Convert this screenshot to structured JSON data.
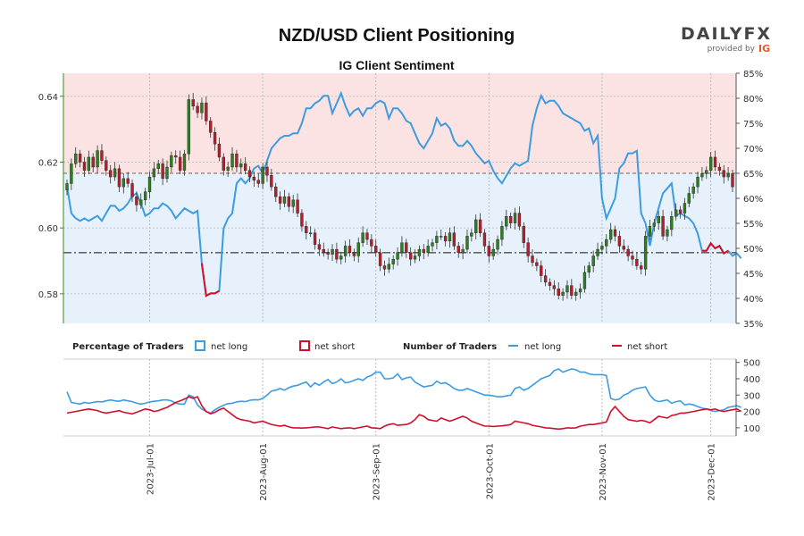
{
  "chart_data": {
    "title": "NZD/USD Client Positioning",
    "subtitle": "IG Client Sentiment",
    "brand": {
      "name": "DAILYFX",
      "tagline": "provided by",
      "partner": "IG"
    },
    "x_dates": [
      "2023-Jul-01",
      "2023-Aug-01",
      "2023-Sep-01",
      "2023-Oct-01",
      "2023-Nov-01",
      "2023-Dec-01"
    ],
    "price": {
      "type": "candlestick",
      "ylim": [
        0.571,
        0.647
      ],
      "ticks": [
        0.58,
        0.6,
        0.62,
        0.64
      ],
      "tick_labels": [
        "0.58",
        "0.60",
        "0.62",
        "0.64"
      ],
      "reference_line": 0.5925,
      "closes": [
        0.6135,
        0.6195,
        0.6225,
        0.62,
        0.6175,
        0.6215,
        0.6185,
        0.6235,
        0.6205,
        0.6175,
        0.6155,
        0.618,
        0.6125,
        0.615,
        0.6135,
        0.6095,
        0.607,
        0.6085,
        0.611,
        0.6155,
        0.618,
        0.6195,
        0.615,
        0.6185,
        0.622,
        0.6215,
        0.6175,
        0.6225,
        0.639,
        0.637,
        0.635,
        0.638,
        0.6325,
        0.629,
        0.6255,
        0.6215,
        0.6175,
        0.6185,
        0.6225,
        0.6185,
        0.6195,
        0.6175,
        0.6155,
        0.6145,
        0.6135,
        0.6185,
        0.616,
        0.6125,
        0.6095,
        0.6075,
        0.6095,
        0.6065,
        0.6085,
        0.6045,
        0.6005,
        0.5985,
        0.5985,
        0.595,
        0.5935,
        0.5925,
        0.592,
        0.5935,
        0.5905,
        0.5915,
        0.5945,
        0.5925,
        0.5915,
        0.5955,
        0.5985,
        0.5965,
        0.5945,
        0.5925,
        0.5885,
        0.5875,
        0.589,
        0.5905,
        0.5925,
        0.5955,
        0.5925,
        0.5905,
        0.5915,
        0.5935,
        0.5925,
        0.5945,
        0.5955,
        0.5975,
        0.5975,
        0.596,
        0.5985,
        0.5945,
        0.5925,
        0.5935,
        0.5975,
        0.5985,
        0.6025,
        0.5985,
        0.5945,
        0.5915,
        0.5935,
        0.5965,
        0.6005,
        0.6035,
        0.6015,
        0.6045,
        0.6005,
        0.5955,
        0.5915,
        0.5895,
        0.5885,
        0.5855,
        0.5835,
        0.5825,
        0.5815,
        0.5795,
        0.5805,
        0.5825,
        0.5795,
        0.5805,
        0.5815,
        0.5865,
        0.5885,
        0.5915,
        0.5935,
        0.5945,
        0.5965,
        0.5995,
        0.5975,
        0.5945,
        0.5935,
        0.5915,
        0.5905,
        0.5885,
        0.5875,
        0.5975,
        0.6005,
        0.6015,
        0.6035,
        0.5975,
        0.5995,
        0.6035,
        0.6055,
        0.6045,
        0.6075,
        0.6105,
        0.6125,
        0.6155,
        0.6165,
        0.6175,
        0.6215,
        0.6185,
        0.6175,
        0.6155,
        0.6165,
        0.6125
      ]
    },
    "sentiment": {
      "ylim": [
        35,
        85
      ],
      "ticks": [
        35,
        40,
        45,
        50,
        55,
        60,
        65,
        70,
        75,
        80,
        85
      ],
      "tick_labels": [
        "35%",
        "40%",
        "45%",
        "50%",
        "55%",
        "60%",
        "65%",
        "70%",
        "75%",
        "80%",
        "85%"
      ],
      "reference_line": 65,
      "net_long_pct": [
        62.5,
        57,
        56,
        55.5,
        56,
        55.5,
        56,
        56.5,
        55.5,
        57,
        58.5,
        58.5,
        57.5,
        58,
        59,
        60.5,
        61,
        59,
        56.5,
        57,
        58,
        58,
        59,
        58.5,
        57.5,
        56,
        57,
        58,
        57.5,
        57,
        57.5,
        47,
        40.5,
        41,
        41,
        41.5,
        54,
        56,
        57,
        63,
        64,
        63,
        64,
        66,
        66.5,
        65,
        67.5,
        70,
        71,
        72,
        72.5,
        72.5,
        73,
        73,
        75,
        78,
        78,
        79,
        79.5,
        80.5,
        80.5,
        77,
        79,
        81,
        78.5,
        76.5,
        77.5,
        78,
        76.5,
        78,
        78,
        79,
        79.5,
        79,
        76,
        78,
        78,
        77,
        75.5,
        75,
        73,
        71,
        70,
        71.5,
        73,
        76,
        74.5,
        75,
        74,
        71.5,
        70.5,
        70.5,
        71.5,
        70.5,
        69,
        68,
        67,
        67.5,
        65.5,
        64,
        63,
        64.5,
        66,
        67,
        66.5,
        67,
        67.5,
        74.5,
        78,
        80.5,
        79,
        79.5,
        79.5,
        78.5,
        77,
        76.5,
        76,
        75.5,
        75,
        73.5,
        74,
        71,
        72.5,
        60,
        56,
        58,
        60,
        66,
        67,
        69,
        69,
        69.5,
        57,
        55,
        50.5,
        55,
        58,
        61,
        62,
        63,
        56.5,
        57,
        56.5,
        56,
        55,
        53,
        49.5,
        49.5,
        51,
        50,
        50.5,
        49,
        49.5,
        48.5,
        49,
        48
      ],
      "net_short_pct": [
        null,
        null,
        null,
        null,
        null,
        null,
        null,
        null,
        null,
        null,
        null,
        null,
        null,
        null,
        null,
        null,
        null,
        null,
        null,
        null,
        null,
        null,
        null,
        null,
        null,
        null,
        null,
        null,
        null,
        null,
        null,
        47,
        40.5,
        41,
        41,
        41.5,
        null,
        null,
        null,
        null,
        null,
        null,
        null,
        null,
        null,
        null,
        null,
        null,
        null,
        null,
        null,
        null,
        null,
        null,
        null,
        null,
        null,
        null,
        null,
        null,
        null,
        null,
        null,
        null,
        null,
        null,
        null,
        null,
        null,
        null,
        null,
        null,
        null,
        null,
        null,
        null,
        null,
        null,
        null,
        null,
        null,
        null,
        null,
        null,
        null,
        null,
        null,
        null,
        null,
        null,
        null,
        null,
        null,
        null,
        null,
        null,
        null,
        null,
        null,
        null,
        null,
        null,
        null,
        null,
        null,
        null,
        null,
        null,
        null,
        null,
        null,
        null,
        null,
        null,
        null,
        null,
        null,
        null,
        null,
        null,
        null,
        null,
        null,
        null,
        null,
        null,
        null,
        null,
        null,
        null,
        null,
        null,
        null,
        null,
        null,
        null,
        null,
        null,
        null,
        null,
        null,
        null,
        null,
        null,
        null,
        null,
        49.5,
        49.5,
        51,
        50,
        50.5,
        49,
        49.5,
        null,
        null,
        null
      ],
      "colors": {
        "net_long": "#3d9be0",
        "net_short": "#d0102a",
        "long_fill": "#e6f1fb",
        "short_fill": "#fbe3e3"
      }
    },
    "traders": {
      "ylim": [
        50,
        520
      ],
      "ticks": [
        100,
        200,
        300,
        400,
        500
      ],
      "tick_labels": [
        "100",
        "200",
        "300",
        "400",
        "500"
      ],
      "net_long": [
        320,
        255,
        250,
        245,
        255,
        250,
        255,
        260,
        258,
        265,
        270,
        265,
        262,
        270,
        265,
        260,
        250,
        245,
        250,
        258,
        262,
        265,
        270,
        270,
        265,
        250,
        245,
        245,
        300,
        290,
        240,
        215,
        200,
        190,
        210,
        225,
        238,
        248,
        250,
        258,
        262,
        260,
        268,
        272,
        270,
        280,
        300,
        325,
        330,
        340,
        330,
        345,
        355,
        360,
        370,
        380,
        350,
        375,
        360,
        380,
        395,
        370,
        380,
        400,
        375,
        380,
        390,
        400,
        390,
        410,
        420,
        440,
        440,
        400,
        400,
        405,
        430,
        395,
        405,
        410,
        380,
        365,
        350,
        355,
        360,
        385,
        370,
        375,
        360,
        340,
        330,
        330,
        340,
        330,
        320,
        310,
        300,
        300,
        295,
        290,
        290,
        295,
        300,
        340,
        350,
        330,
        340,
        360,
        380,
        400,
        410,
        420,
        450,
        460,
        440,
        450,
        460,
        455,
        440,
        440,
        430,
        425,
        425,
        425,
        420,
        280,
        270,
        275,
        300,
        310,
        330,
        340,
        345,
        350,
        300,
        270,
        260,
        265,
        270,
        250,
        260,
        265,
        240,
        245,
        240,
        230,
        220,
        215,
        205,
        200,
        205,
        210,
        225,
        230,
        235,
        225
      ],
      "net_short": [
        190,
        195,
        200,
        205,
        210,
        215,
        210,
        205,
        195,
        190,
        195,
        200,
        205,
        195,
        190,
        185,
        195,
        205,
        215,
        210,
        200,
        205,
        215,
        225,
        240,
        255,
        265,
        275,
        290,
        280,
        290,
        235,
        200,
        185,
        195,
        210,
        220,
        200,
        180,
        160,
        150,
        145,
        140,
        130,
        135,
        140,
        130,
        120,
        115,
        110,
        115,
        105,
        100,
        100,
        98,
        100,
        102,
        105,
        105,
        100,
        95,
        105,
        100,
        95,
        98,
        100,
        95,
        100,
        105,
        110,
        100,
        98,
        95,
        110,
        120,
        125,
        115,
        118,
        120,
        130,
        150,
        180,
        170,
        150,
        145,
        140,
        160,
        150,
        140,
        150,
        160,
        170,
        160,
        140,
        130,
        120,
        110,
        110,
        108,
        110,
        112,
        115,
        120,
        140,
        135,
        130,
        125,
        115,
        110,
        105,
        100,
        98,
        95,
        92,
        95,
        100,
        98,
        100,
        110,
        115,
        120,
        120,
        125,
        130,
        135,
        200,
        230,
        200,
        170,
        150,
        145,
        140,
        145,
        140,
        130,
        150,
        170,
        165,
        160,
        175,
        180,
        190,
        190,
        195,
        200,
        205,
        210,
        215,
        210,
        215,
        205,
        200,
        205,
        210,
        215,
        200
      ],
      "colors": {
        "net_long": "#3d9be0",
        "net_short": "#d0102a"
      }
    },
    "legend": {
      "pct_label": "Percentage of Traders",
      "num_label": "Number of Traders",
      "net_long": "net long",
      "net_short": "net short"
    }
  }
}
